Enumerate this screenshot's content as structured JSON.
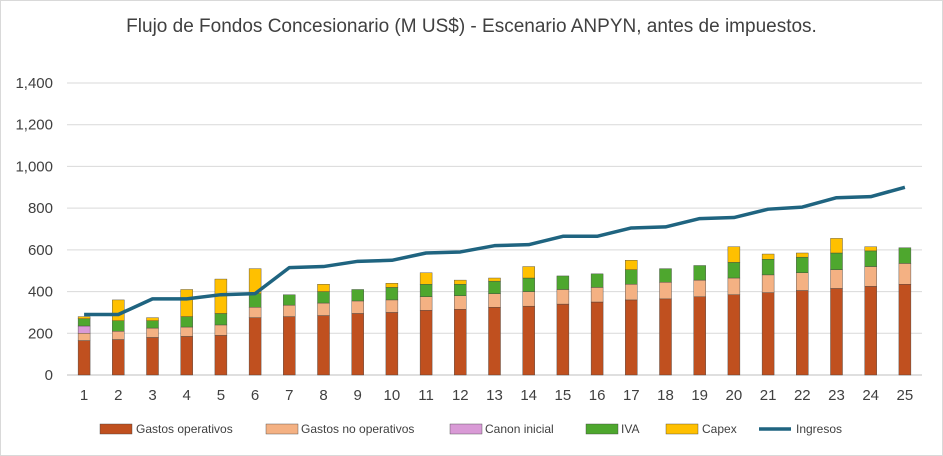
{
  "chart_data": {
    "type": "bar",
    "stacked": true,
    "title": "Flujo de Fondos Concesionario (M US$) - Escenario ANPYN, antes de impuestos.",
    "xlabel": "",
    "ylabel": "",
    "ylim": [
      0,
      1400
    ],
    "yticks": [
      "0",
      "200",
      "400",
      "600",
      "800",
      "1,000",
      "1,200",
      "1,400"
    ],
    "grid": true,
    "legend_position": "bottom",
    "categories": [
      "1",
      "2",
      "3",
      "4",
      "5",
      "6",
      "7",
      "8",
      "9",
      "10",
      "11",
      "12",
      "13",
      "14",
      "15",
      "16",
      "17",
      "18",
      "19",
      "20",
      "21",
      "22",
      "23",
      "24",
      "25"
    ],
    "series": [
      {
        "name": "Gastos operativos",
        "type": "bar",
        "color": "#c0501f",
        "values": [
          165,
          170,
          180,
          185,
          190,
          275,
          280,
          285,
          295,
          300,
          310,
          315,
          325,
          330,
          340,
          350,
          360,
          365,
          375,
          385,
          395,
          405,
          415,
          425,
          435
        ]
      },
      {
        "name": "Gastos no operativos",
        "type": "bar",
        "color": "#f4b183",
        "values": [
          35,
          40,
          45,
          45,
          50,
          50,
          55,
          60,
          60,
          60,
          65,
          65,
          65,
          70,
          70,
          70,
          75,
          80,
          80,
          80,
          85,
          85,
          90,
          95,
          100
        ]
      },
      {
        "name": "Canon inicial",
        "type": "bar",
        "color": "#d99ad6",
        "values": [
          35,
          0,
          0,
          0,
          0,
          0,
          0,
          0,
          0,
          0,
          0,
          0,
          0,
          0,
          0,
          0,
          0,
          0,
          0,
          0,
          0,
          0,
          0,
          0,
          0
        ]
      },
      {
        "name": "IVA",
        "type": "bar",
        "color": "#4ea72e",
        "values": [
          35,
          50,
          35,
          50,
          55,
          65,
          50,
          55,
          55,
          60,
          60,
          55,
          60,
          65,
          65,
          65,
          70,
          65,
          70,
          75,
          75,
          75,
          80,
          75,
          75
        ]
      },
      {
        "name": "Capex",
        "type": "bar",
        "color": "#ffc000",
        "values": [
          10,
          100,
          15,
          130,
          165,
          120,
          0,
          35,
          0,
          20,
          55,
          20,
          15,
          55,
          0,
          0,
          45,
          0,
          0,
          75,
          25,
          20,
          70,
          20,
          0
        ]
      },
      {
        "name": "Ingresos",
        "type": "line",
        "color": "#1f6480",
        "values": [
          290,
          290,
          365,
          365,
          385,
          390,
          515,
          520,
          545,
          550,
          585,
          590,
          620,
          625,
          665,
          665,
          705,
          710,
          750,
          755,
          795,
          805,
          850,
          855,
          900
        ]
      }
    ]
  },
  "colors": {
    "axis": "#bfbfbf",
    "grid": "#d9d9d9",
    "text": "#404040"
  }
}
